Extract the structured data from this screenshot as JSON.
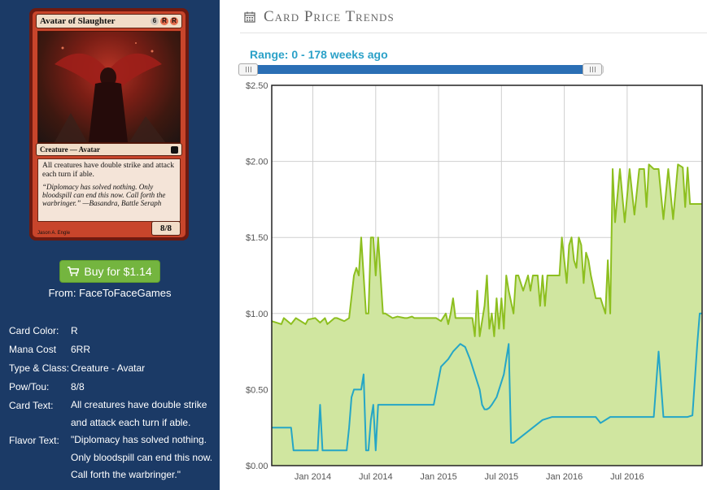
{
  "card": {
    "name": "Avatar of Slaughter",
    "mana_symbols": [
      {
        "symbol": "6",
        "kind": "generic"
      },
      {
        "symbol": "R",
        "kind": "red"
      },
      {
        "symbol": "R",
        "kind": "red"
      }
    ],
    "type_line": "Creature — Avatar",
    "rules_text": "All creatures have double strike and attack each turn if able.",
    "flavor_text": "“Diplomacy has solved nothing. Only bloodspill can end this now. Call forth the warbringer.” —Basandra, Battle Seraph",
    "power_toughness": "8/8",
    "artist": "Jason A. Engle"
  },
  "buy": {
    "button_label": "Buy for $1.14",
    "from_label": "From:",
    "store": "FaceToFaceGames",
    "button_color": "#74b53f"
  },
  "details": [
    {
      "label": "Card Color:",
      "value": "R"
    },
    {
      "label": "Mana Cost",
      "value": "6RR"
    },
    {
      "label": "Type & Class:",
      "value": "Creature - Avatar"
    },
    {
      "label": "Pow/Tou:",
      "value": "8/8"
    },
    {
      "label": "Card Text:",
      "value": "All creatures have double strike and attack each turn if able."
    },
    {
      "label": "Flavor Text:",
      "value": "\"Diplomacy has solved nothing. Only bloodspill can end this now. Call forth the warbringer.\""
    }
  ],
  "trends": {
    "section_title": "Card Price Trends",
    "range_label": "Range: 0 - 178 weeks ago",
    "range_weeks": [
      0,
      178
    ],
    "slider_max_weeks": 178
  },
  "colors": {
    "panel_bg": "#1b3a66",
    "accent": "#2ba1c8",
    "series_paper": "#8dbf1f",
    "series_foil": "#25a6c6",
    "fill": "#d0e6a0"
  },
  "chart_data": {
    "type": "area",
    "ylim": [
      0,
      2.5
    ],
    "yticks": [
      "$0.00",
      "$0.50",
      "$1.00",
      "$1.50",
      "$2.00",
      "$2.50"
    ],
    "xticks": [
      "Jan 2014",
      "Jul 2014",
      "Jan 2015",
      "Jul 2015",
      "Jan 2016",
      "Jul 2016"
    ],
    "xlim": [
      0,
      178
    ],
    "xtick_weeks": [
      17,
      43,
      69,
      95,
      121,
      147
    ],
    "grid": true,
    "series": [
      {
        "values_x": [
          0,
          4,
          5,
          8,
          10,
          14,
          15,
          18,
          20,
          22,
          23,
          26,
          27,
          30,
          32,
          34,
          35,
          36,
          37,
          38,
          39,
          40,
          41,
          42,
          43,
          44,
          45,
          46,
          47,
          50,
          52,
          55,
          56,
          58,
          59,
          60,
          62,
          64,
          65,
          66,
          68,
          70,
          72,
          73,
          74,
          75,
          76,
          78,
          79,
          80,
          83,
          84,
          85,
          86,
          88,
          89,
          90,
          91,
          92,
          93,
          94,
          95,
          96,
          97,
          98,
          100,
          101,
          102,
          104,
          106,
          107,
          108,
          110,
          111,
          112,
          113,
          114,
          116,
          118,
          119,
          120,
          122,
          123,
          124,
          125,
          126,
          127,
          128,
          129,
          130,
          131,
          132,
          134,
          136,
          138,
          139,
          140,
          141,
          142,
          144,
          146,
          148,
          150,
          152,
          154,
          155,
          156,
          158,
          160,
          162,
          164,
          166,
          168,
          170,
          171,
          172,
          173,
          175,
          176,
          177,
          178
        ],
        "values": [
          0.95,
          0.93,
          0.97,
          0.93,
          0.97,
          0.93,
          0.96,
          0.97,
          0.94,
          0.97,
          0.93,
          0.97,
          0.97,
          0.95,
          0.97,
          1.25,
          1.3,
          1.25,
          1.5,
          1.25,
          1.0,
          1.0,
          1.5,
          1.5,
          1.25,
          1.5,
          1.25,
          1.0,
          1.0,
          0.97,
          0.98,
          0.97,
          0.97,
          0.98,
          0.97,
          0.97,
          0.97,
          0.97,
          0.97,
          0.97,
          0.97,
          0.95,
          1.0,
          0.93,
          1.0,
          1.1,
          0.97,
          0.97,
          0.97,
          0.97,
          0.97,
          0.85,
          1.15,
          0.85,
          1.05,
          1.25,
          0.9,
          1.0,
          0.85,
          1.1,
          0.9,
          1.1,
          0.9,
          1.25,
          1.15,
          1.0,
          1.25,
          1.25,
          1.15,
          1.25,
          1.15,
          1.25,
          1.25,
          1.05,
          1.25,
          1.05,
          1.25,
          1.25,
          1.25,
          1.25,
          1.5,
          1.2,
          1.45,
          1.5,
          1.35,
          1.3,
          1.5,
          1.45,
          1.2,
          1.4,
          1.35,
          1.25,
          1.1,
          1.1,
          1.0,
          1.35,
          1.0,
          1.95,
          1.6,
          1.95,
          1.6,
          1.95,
          1.65,
          1.95,
          1.95,
          1.7,
          1.98,
          1.95,
          1.95,
          1.62,
          1.95,
          1.62,
          1.98,
          1.96,
          1.7,
          1.96,
          1.72,
          1.72,
          1.72,
          1.72,
          1.72
        ]
      },
      {
        "values_x": [
          0,
          8,
          9,
          19,
          20,
          21,
          22,
          23,
          24,
          29,
          30,
          31,
          32,
          33,
          34,
          36,
          37,
          38,
          39,
          40,
          41,
          42,
          43,
          44,
          46,
          47,
          48,
          50,
          51,
          53,
          54,
          56,
          58,
          60,
          63,
          65,
          67,
          70,
          73,
          75,
          78,
          80,
          82,
          84,
          86,
          87,
          88,
          89,
          90,
          91,
          93,
          94,
          95,
          96,
          97,
          98,
          99,
          100,
          104,
          108,
          112,
          116,
          118,
          120,
          124,
          128,
          132,
          134,
          136,
          140,
          144,
          148,
          150,
          154,
          158,
          160,
          162,
          164,
          166,
          168,
          169,
          170,
          172,
          174,
          176,
          177,
          178
        ],
        "values": [
          0.25,
          0.25,
          0.1,
          0.1,
          0.4,
          0.1,
          0.1,
          0.1,
          0.1,
          0.1,
          0.1,
          0.1,
          0.25,
          0.45,
          0.5,
          0.5,
          0.5,
          0.6,
          0.1,
          0.1,
          0.3,
          0.4,
          0.1,
          0.4,
          0.4,
          0.4,
          0.4,
          0.4,
          0.4,
          0.4,
          0.4,
          0.4,
          0.4,
          0.4,
          0.4,
          0.4,
          0.4,
          0.65,
          0.7,
          0.75,
          0.8,
          0.78,
          0.7,
          0.6,
          0.5,
          0.4,
          0.37,
          0.37,
          0.38,
          0.4,
          0.45,
          0.5,
          0.55,
          0.6,
          0.7,
          0.8,
          0.15,
          0.15,
          0.2,
          0.25,
          0.3,
          0.32,
          0.32,
          0.32,
          0.32,
          0.32,
          0.32,
          0.32,
          0.28,
          0.32,
          0.32,
          0.32,
          0.32,
          0.32,
          0.32,
          0.75,
          0.32,
          0.32,
          0.32,
          0.32,
          0.32,
          0.32,
          0.32,
          0.33,
          0.8,
          1.0,
          1.0
        ]
      }
    ]
  }
}
